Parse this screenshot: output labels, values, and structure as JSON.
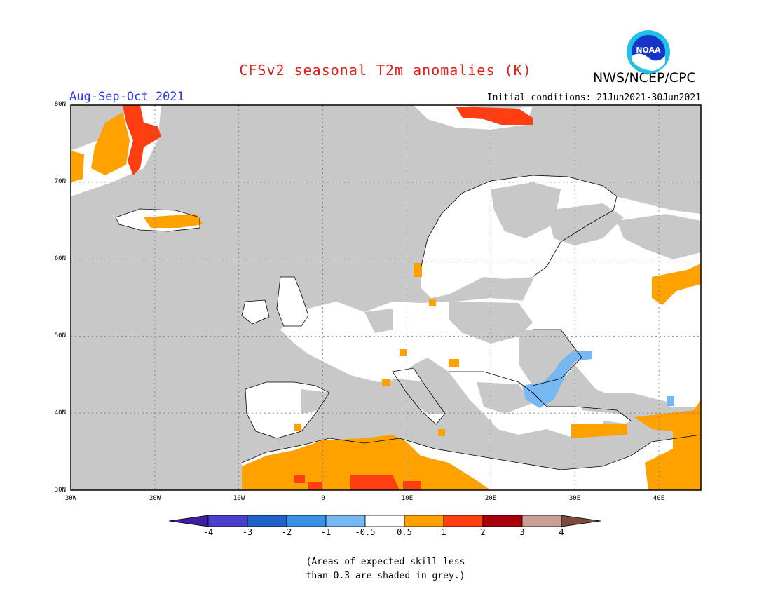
{
  "header": {
    "title": "CFSv2 seasonal T2m anomalies (K)",
    "agency": "NWS/NCEP/CPC",
    "season": "Aug-Sep-Oct 2021",
    "initial_conditions": "Initial conditions: 21Jun2021-30Jun2021",
    "logo_text": "NOAA"
  },
  "map": {
    "lat_labels": [
      "80N",
      "70N",
      "60N",
      "50N",
      "40N",
      "30N"
    ],
    "lon_labels": [
      "30W",
      "20W",
      "10W",
      "0",
      "10E",
      "20E",
      "30E",
      "40E"
    ],
    "extent": {
      "lon": [
        -30,
        45
      ],
      "lat": [
        30,
        80
      ]
    },
    "grey_color": "#c8c8c8",
    "land_color": "#ffffff",
    "ocean_color": "#c8c8c8"
  },
  "colorbar": {
    "labels": [
      "-4",
      "-3",
      "-2",
      "-1",
      "-0.5",
      "0.5",
      "1",
      "2",
      "3",
      "4"
    ],
    "colors": [
      "#3c1e9e",
      "#4a40cc",
      "#1f63c9",
      "#3a91e6",
      "#77b8f2",
      "#ffffff",
      "#ffa200",
      "#ff3e12",
      "#a8000a",
      "#c8a096",
      "#7a4a3a"
    ]
  },
  "note": {
    "line1": "(Areas of expected skill less",
    "line2": "than 0.3 are shaded in grey.)"
  }
}
